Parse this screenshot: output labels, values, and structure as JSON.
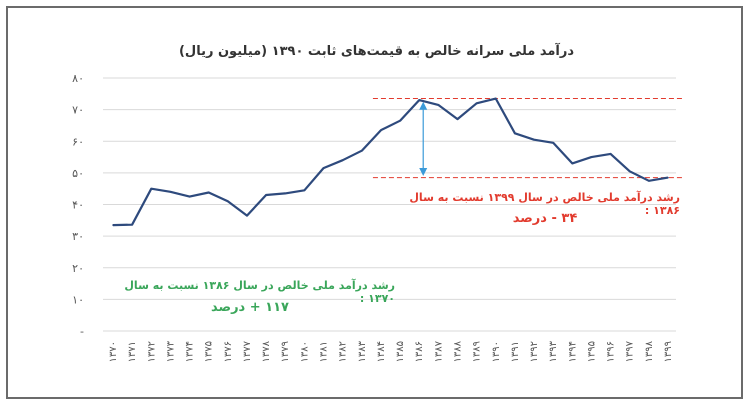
{
  "chart_data": {
    "type": "line",
    "title": "درآمد ملی سرانه خالص به قیمت‌های ثابت ۱۳۹۰ (میلیون ریال)",
    "xlabel": "",
    "ylabel": "",
    "ylim": [
      0,
      80
    ],
    "yticks": [
      0,
      10,
      20,
      30,
      40,
      50,
      60,
      70,
      80
    ],
    "ytick_labels": [
      "-",
      "۱۰",
      "۲۰",
      "۳۰",
      "۴۰",
      "۵۰",
      "۶۰",
      "۷۰",
      "۸۰"
    ],
    "categories": [
      "۱۳۷۰",
      "۱۳۷۱",
      "۱۳۷۲",
      "۱۳۷۳",
      "۱۳۷۴",
      "۱۳۷۵",
      "۱۳۷۶",
      "۱۳۷۷",
      "۱۳۷۸",
      "۱۳۷۹",
      "۱۳۸۰",
      "۱۳۸۱",
      "۱۳۸۲",
      "۱۳۸۳",
      "۱۳۸۴",
      "۱۳۸۵",
      "۱۳۸۶",
      "۱۳۸۷",
      "۱۳۸۸",
      "۱۳۸۹",
      "۱۳۹۰",
      "۱۳۹۱",
      "۱۳۹۲",
      "۱۳۹۳",
      "۱۳۹۴",
      "۱۳۹۵",
      "۱۳۹۶",
      "۱۳۹۷",
      "۱۳۹۸",
      "۱۳۹۹"
    ],
    "series": [
      {
        "values": [
          33.5,
          33.6,
          45.0,
          44.0,
          42.5,
          43.8,
          41.0,
          36.5,
          43.0,
          43.5,
          44.5,
          51.5,
          54.0,
          57.0,
          63.5,
          66.5,
          73.0,
          71.5,
          67.0,
          72.0,
          73.5,
          62.5,
          60.5,
          59.5,
          53.0,
          55.0,
          56.0,
          50.5,
          47.5,
          48.5
        ]
      }
    ],
    "grid": true,
    "reference_lines": [
      {
        "y": 73.5,
        "color": "#e23b2e",
        "style": "dashed"
      },
      {
        "y": 48.5,
        "color": "#e23b2e",
        "style": "dashed"
      }
    ],
    "arrow": {
      "x_category": "۱۳۸۶",
      "from_y": 72.5,
      "to_y": 49.0,
      "color": "#3a9ad9"
    },
    "annotations": {
      "red_line1": "رشد درآمد ملی خالص در سال ۱۳۹۹ نسبت به سال ۱۳۸۶ :",
      "red_line2": "۳۴ - درصد",
      "green_line1": "رشد درآمد ملی خالص در سال ۱۳۸۶ نسبت به سال ۱۳۷۰ :",
      "green_line2": "۱۱۷ + درصد"
    },
    "colors": {
      "line": "#2e4a7d",
      "grid": "#d9d9d9",
      "red": "#e23b2e",
      "green": "#3aa65a",
      "arrow": "#3a9ad9",
      "tick": "#555555"
    }
  }
}
